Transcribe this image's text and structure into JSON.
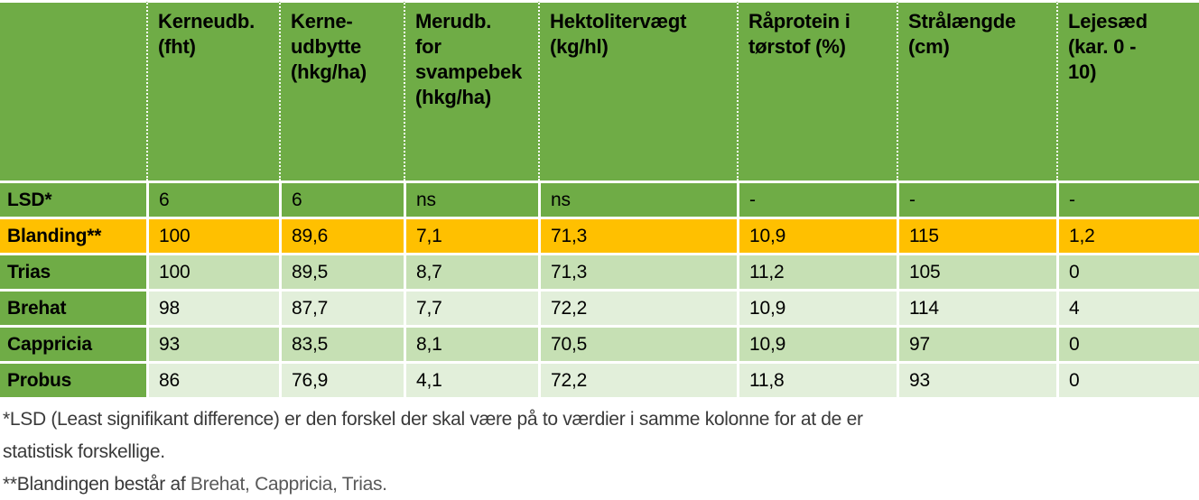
{
  "colors": {
    "header_green": "#6FAC46",
    "highlight_orange": "#FFC000",
    "band_light_green": "#C6E0B4",
    "band_lighter_green": "#E2EFDA",
    "separator_white": "#FFFFFF",
    "table_text": "#000000",
    "footnote_dark": "#3A3A3A",
    "footnote_gray": "#595959"
  },
  "table": {
    "header_labels": [
      "",
      "Kerneudb.\n(fht)",
      "Kerne-\nudbytte\n(hkg/ha)",
      "Merudb.\nfor\nsvampebek\n(hkg/ha)",
      "Hektolitervægt\n(kg/hl)",
      "Råprotein i\ntørstof (%)",
      "Strålængde\n(cm)",
      "Lejesæd\n(kar. 0 -\n10)"
    ]
  },
  "chart_data": {
    "type": "table",
    "columns": [
      "",
      "Kerneudb. (fht)",
      "Kerne-udbytte (hkg/ha)",
      "Merudb. for svampebek (hkg/ha)",
      "Hektolitervægt (kg/hl)",
      "Råprotein i tørstof (%)",
      "Strålængde (cm)",
      "Lejesæd (kar. 0 - 10)"
    ],
    "rows": [
      {
        "label": "LSD*",
        "values": [
          "6",
          "6",
          "ns",
          "ns",
          "-",
          "-",
          "-"
        ]
      },
      {
        "label": "Blanding**",
        "values": [
          "100",
          "89,6",
          "7,1",
          "71,3",
          "10,9",
          "115",
          "1,2"
        ]
      },
      {
        "label": "Trias",
        "values": [
          "100",
          "89,5",
          "8,7",
          "71,3",
          "11,2",
          "105",
          "0"
        ]
      },
      {
        "label": "Brehat",
        "values": [
          "98",
          "87,7",
          "7,7",
          "72,2",
          "10,9",
          "114",
          "4"
        ]
      },
      {
        "label": "Cappricia",
        "values": [
          "93",
          "83,5",
          "8,1",
          "70,5",
          "10,9",
          "97",
          "0"
        ]
      },
      {
        "label": "Probus",
        "values": [
          "86",
          "76,9",
          "4,1",
          "72,2",
          "11,8",
          "93",
          "0"
        ]
      }
    ]
  },
  "footnotes": {
    "lsd_line1": "*LSD (Least signifikant difference) er den forskel der skal være på to værdier i samme kolonne for at de er",
    "lsd_line2": "statistisk forskellige.",
    "mix_prefix": "**Blandingen består af ",
    "mix_varieties": "Brehat, Cappricia, Trias."
  }
}
